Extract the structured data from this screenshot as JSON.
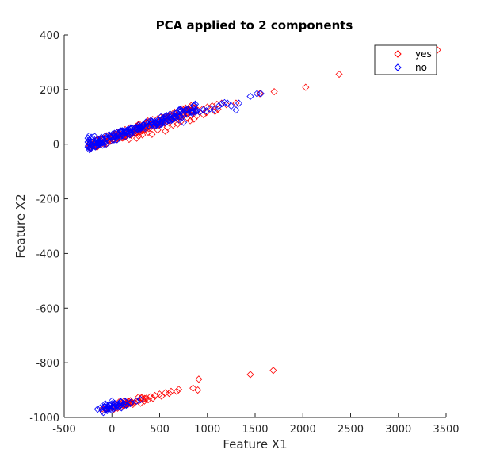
{
  "chart_data": {
    "type": "scatter",
    "title": "PCA applied to 2 components",
    "xlabel": "Feature X1",
    "ylabel": "Feature X2",
    "xlim": [
      -500,
      3500
    ],
    "ylim": [
      -1000,
      400
    ],
    "xticks": [
      -500,
      0,
      500,
      1000,
      1500,
      2000,
      2500,
      3000,
      3500
    ],
    "yticks": [
      -1000,
      -800,
      -600,
      -400,
      -200,
      0,
      200,
      400
    ],
    "grid": false,
    "legend_position": "top-right",
    "marker": "diamond",
    "series": [
      {
        "name": "yes",
        "color": "#ff0000",
        "points": [
          [
            -160,
            -8
          ],
          [
            -120,
            2
          ],
          [
            -60,
            8
          ],
          [
            0,
            12
          ],
          [
            50,
            18
          ],
          [
            100,
            24
          ],
          [
            150,
            30
          ],
          [
            200,
            34
          ],
          [
            250,
            40
          ],
          [
            300,
            46
          ],
          [
            350,
            52
          ],
          [
            400,
            60
          ],
          [
            450,
            66
          ],
          [
            500,
            72
          ],
          [
            550,
            78
          ],
          [
            600,
            86
          ],
          [
            650,
            92
          ],
          [
            700,
            100
          ],
          [
            750,
            106
          ],
          [
            800,
            112
          ],
          [
            850,
            118
          ],
          [
            900,
            124
          ],
          [
            950,
            128
          ],
          [
            1000,
            136
          ],
          [
            1050,
            140
          ],
          [
            1100,
            146
          ],
          [
            1150,
            150
          ],
          [
            1200,
            145
          ],
          [
            1300,
            150
          ],
          [
            1550,
            185
          ],
          [
            1700,
            192
          ],
          [
            2030,
            208
          ],
          [
            2380,
            256
          ],
          [
            3410,
            345
          ],
          [
            180,
            18
          ],
          [
            280,
            30
          ],
          [
            380,
            44
          ],
          [
            480,
            52
          ],
          [
            580,
            62
          ],
          [
            690,
            74
          ],
          [
            790,
            96
          ],
          [
            890,
            104
          ],
          [
            990,
            116
          ],
          [
            1080,
            120
          ],
          [
            260,
            22
          ],
          [
            420,
            36
          ],
          [
            560,
            48
          ],
          [
            720,
            82
          ],
          [
            860,
            92
          ],
          [
            960,
            108
          ],
          [
            1110,
            128
          ],
          [
            320,
            34
          ],
          [
            640,
            70
          ],
          [
            820,
            86
          ],
          [
            -100,
            -975
          ],
          [
            -50,
            -968
          ],
          [
            0,
            -964
          ],
          [
            40,
            -960
          ],
          [
            80,
            -958
          ],
          [
            120,
            -955
          ],
          [
            160,
            -952
          ],
          [
            200,
            -948
          ],
          [
            240,
            -945
          ],
          [
            280,
            -940
          ],
          [
            320,
            -935
          ],
          [
            360,
            -930
          ],
          [
            400,
            -925
          ],
          [
            450,
            -920
          ],
          [
            500,
            -915
          ],
          [
            560,
            -910
          ],
          [
            620,
            -905
          ],
          [
            700,
            -898
          ],
          [
            850,
            -893
          ],
          [
            900,
            -900
          ],
          [
            910,
            -860
          ],
          [
            1450,
            -843
          ],
          [
            1690,
            -828
          ],
          [
            100,
            -960
          ],
          [
            140,
            -950
          ],
          [
            220,
            -952
          ],
          [
            300,
            -948
          ],
          [
            340,
            -940
          ],
          [
            380,
            -935
          ],
          [
            430,
            -930
          ],
          [
            520,
            -922
          ],
          [
            600,
            -912
          ],
          [
            680,
            -905
          ],
          [
            20,
            -970
          ],
          [
            60,
            -966
          ]
        ]
      },
      {
        "name": "no",
        "color": "#0000ff",
        "points": [
          [
            -250,
            22
          ],
          [
            -250,
            8
          ],
          [
            -245,
            -5
          ],
          [
            -240,
            15
          ],
          [
            -230,
            0
          ],
          [
            -220,
            10
          ],
          [
            -210,
            25
          ],
          [
            -200,
            -2
          ],
          [
            -190,
            12
          ],
          [
            -180,
            28
          ],
          [
            -170,
            5
          ],
          [
            -150,
            18
          ],
          [
            -130,
            10
          ],
          [
            -110,
            25
          ],
          [
            -90,
            15
          ],
          [
            -70,
            30
          ],
          [
            -50,
            20
          ],
          [
            -30,
            35
          ],
          [
            -10,
            25
          ],
          [
            10,
            38
          ],
          [
            30,
            30
          ],
          [
            50,
            42
          ],
          [
            70,
            34
          ],
          [
            90,
            46
          ],
          [
            110,
            38
          ],
          [
            130,
            50
          ],
          [
            150,
            42
          ],
          [
            170,
            55
          ],
          [
            190,
            46
          ],
          [
            210,
            58
          ],
          [
            230,
            52
          ],
          [
            250,
            62
          ],
          [
            270,
            56
          ],
          [
            290,
            66
          ],
          [
            310,
            60
          ],
          [
            330,
            70
          ],
          [
            350,
            64
          ],
          [
            370,
            74
          ],
          [
            390,
            68
          ],
          [
            410,
            78
          ],
          [
            430,
            72
          ],
          [
            450,
            82
          ],
          [
            470,
            76
          ],
          [
            490,
            86
          ],
          [
            510,
            80
          ],
          [
            530,
            90
          ],
          [
            550,
            84
          ],
          [
            570,
            94
          ],
          [
            590,
            88
          ],
          [
            610,
            98
          ],
          [
            630,
            92
          ],
          [
            650,
            102
          ],
          [
            670,
            96
          ],
          [
            690,
            106
          ],
          [
            710,
            100
          ],
          [
            750,
            104
          ],
          [
            790,
            110
          ],
          [
            840,
            118
          ],
          [
            880,
            122
          ],
          [
            920,
            118
          ],
          [
            960,
            126
          ],
          [
            990,
            122
          ],
          [
            1030,
            130
          ],
          [
            1070,
            128
          ],
          [
            1120,
            140
          ],
          [
            1150,
            148
          ],
          [
            1180,
            152
          ],
          [
            1210,
            150
          ],
          [
            1250,
            140
          ],
          [
            1300,
            125
          ],
          [
            1330,
            150
          ],
          [
            1450,
            175
          ],
          [
            1520,
            185
          ],
          [
            1560,
            185
          ],
          [
            750,
            80
          ],
          [
            700,
            90
          ],
          [
            -240,
            30
          ],
          [
            -20,
            10
          ],
          [
            80,
            22
          ],
          [
            -150,
            -970
          ],
          [
            -120,
            -965
          ],
          [
            -100,
            -975
          ],
          [
            -80,
            -960
          ],
          [
            -60,
            -955
          ],
          [
            -40,
            -962
          ],
          [
            -20,
            -958
          ],
          [
            0,
            -950
          ],
          [
            0,
            -940
          ],
          [
            20,
            -968
          ],
          [
            40,
            -955
          ],
          [
            60,
            -962
          ],
          [
            80,
            -958
          ],
          [
            100,
            -965
          ],
          [
            -90,
            -982
          ],
          [
            -50,
            -975
          ],
          [
            -10,
            -972
          ],
          [
            150,
            -955
          ],
          [
            200,
            -945
          ],
          [
            260,
            -940
          ],
          [
            300,
            -935
          ],
          [
            -70,
            -950
          ]
        ]
      }
    ]
  }
}
